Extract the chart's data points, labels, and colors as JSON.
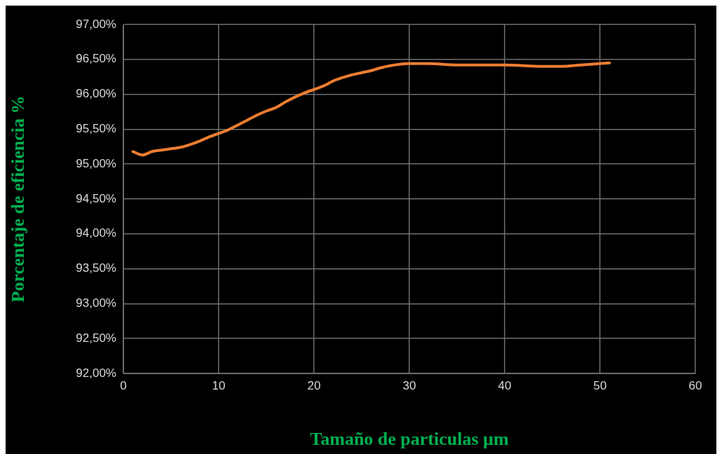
{
  "chart_data": {
    "type": "line",
    "xlabel": "Tamaño de particulas µm",
    "ylabel": "Porcentaje de eficiencia %",
    "x": [
      1,
      2,
      3,
      4,
      5,
      6,
      7,
      8,
      9,
      10,
      11,
      12,
      13,
      14,
      15,
      16,
      17,
      18,
      19,
      20,
      21,
      22,
      23,
      24,
      25,
      26,
      27,
      28,
      29,
      30,
      32,
      35,
      40,
      44,
      46,
      48,
      51
    ],
    "series": [
      {
        "color": "#ed7d31",
        "values": [
          95.18,
          95.13,
          95.18,
          95.2,
          95.22,
          95.24,
          95.28,
          95.33,
          95.39,
          95.44,
          95.49,
          95.56,
          95.63,
          95.7,
          95.76,
          95.81,
          95.89,
          95.96,
          96.02,
          96.07,
          96.12,
          96.19,
          96.24,
          96.28,
          96.31,
          96.34,
          96.38,
          96.41,
          96.43,
          96.44,
          96.44,
          96.42,
          96.42,
          96.4,
          96.4,
          96.42,
          96.45
        ]
      }
    ],
    "xlim": [
      0,
      60
    ],
    "xticks": [
      0,
      10,
      20,
      30,
      40,
      50,
      60
    ],
    "ylim": [
      92,
      97
    ],
    "yticks": [
      {
        "value": 92,
        "label": "92,00%"
      },
      {
        "value": 92.5,
        "label": "92,50%"
      },
      {
        "value": 93,
        "label": "93,00%"
      },
      {
        "value": 93.5,
        "label": "93,50%"
      },
      {
        "value": 94,
        "label": "94,00%"
      },
      {
        "value": 94.5,
        "label": "94,50%"
      },
      {
        "value": 95,
        "label": "95,00%"
      },
      {
        "value": 95.5,
        "label": "95,50%"
      },
      {
        "value": 96,
        "label": "96,00%"
      },
      {
        "value": 96.5,
        "label": "96,50%"
      },
      {
        "value": 97,
        "label": "97,00%"
      }
    ],
    "grid": true,
    "legend": false,
    "marker": "none",
    "line_style": "solid"
  }
}
